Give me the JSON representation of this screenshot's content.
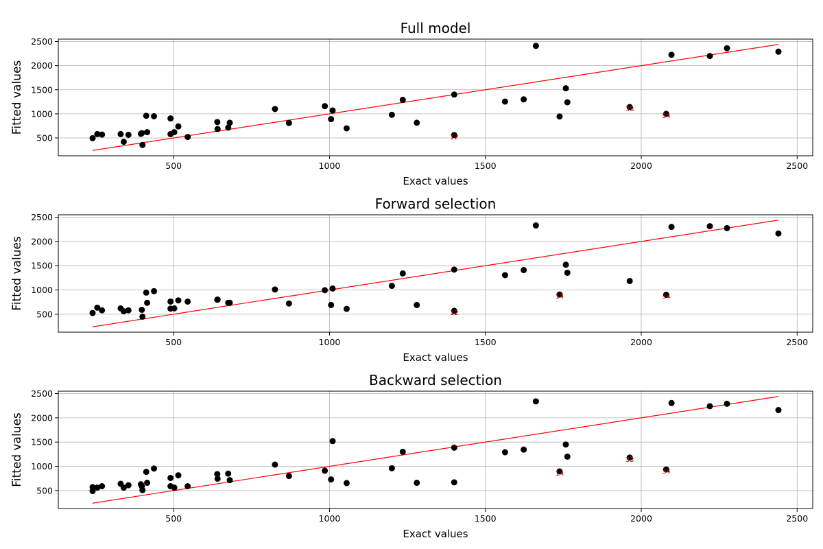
{
  "chart_data": [
    {
      "type": "scatter",
      "title": "Full model",
      "xlabel": "Exact values",
      "ylabel": "Fitted values",
      "xlim": [
        130,
        2550
      ],
      "ylim": [
        130,
        2550
      ],
      "xticks": [
        500,
        1000,
        1500,
        2000,
        2500
      ],
      "yticks": [
        500,
        1000,
        1500,
        2000,
        2500
      ],
      "grid": true,
      "reference_line": {
        "x": [
          240,
          2440
        ],
        "y": [
          240,
          2440
        ],
        "color": "#ff0000"
      },
      "point_color": "#000000",
      "points": [
        [
          240,
          495
        ],
        [
          255,
          580
        ],
        [
          270,
          570
        ],
        [
          330,
          580
        ],
        [
          340,
          420
        ],
        [
          355,
          565
        ],
        [
          395,
          585
        ],
        [
          398,
          600
        ],
        [
          400,
          355
        ],
        [
          412,
          960
        ],
        [
          415,
          620
        ],
        [
          437,
          950
        ],
        [
          490,
          580
        ],
        [
          490,
          905
        ],
        [
          502,
          620
        ],
        [
          515,
          740
        ],
        [
          545,
          520
        ],
        [
          640,
          830
        ],
        [
          641,
          685
        ],
        [
          675,
          715
        ],
        [
          680,
          815
        ],
        [
          825,
          1100
        ],
        [
          870,
          810
        ],
        [
          985,
          1160
        ],
        [
          1005,
          890
        ],
        [
          1010,
          1070
        ],
        [
          1055,
          700
        ],
        [
          1200,
          980
        ],
        [
          1235,
          1290
        ],
        [
          1280,
          815
        ],
        [
          1400,
          560
        ],
        [
          1400,
          1400
        ],
        [
          1563,
          1255
        ],
        [
          1623,
          1300
        ],
        [
          1662,
          2410
        ],
        [
          1738,
          945
        ],
        [
          1758,
          1530
        ],
        [
          1763,
          1240
        ],
        [
          1963,
          1140
        ],
        [
          2080,
          1000
        ],
        [
          2097,
          2225
        ],
        [
          2220,
          2200
        ],
        [
          2275,
          2360
        ],
        [
          2440,
          2290
        ]
      ],
      "annotations": [
        {
          "text": "12",
          "x": 1400,
          "y": 560
        },
        {
          "text": "33",
          "x": 1963,
          "y": 1140
        },
        {
          "text": "34",
          "x": 2080,
          "y": 1000
        }
      ]
    },
    {
      "type": "scatter",
      "title": "Forward selection",
      "xlabel": "Exact values",
      "ylabel": "Fitted values",
      "xlim": [
        130,
        2550
      ],
      "ylim": [
        130,
        2550
      ],
      "xticks": [
        500,
        1000,
        1500,
        2000,
        2500
      ],
      "yticks": [
        500,
        1000,
        1500,
        2000,
        2500
      ],
      "grid": true,
      "reference_line": {
        "x": [
          240,
          2440
        ],
        "y": [
          240,
          2440
        ],
        "color": "#ff0000"
      },
      "point_color": "#000000",
      "points": [
        [
          240,
          525
        ],
        [
          255,
          635
        ],
        [
          270,
          580
        ],
        [
          330,
          620
        ],
        [
          340,
          560
        ],
        [
          355,
          580
        ],
        [
          398,
          590
        ],
        [
          400,
          450
        ],
        [
          412,
          945
        ],
        [
          415,
          735
        ],
        [
          437,
          975
        ],
        [
          490,
          760
        ],
        [
          490,
          615
        ],
        [
          502,
          620
        ],
        [
          515,
          785
        ],
        [
          545,
          760
        ],
        [
          640,
          800
        ],
        [
          641,
          800
        ],
        [
          675,
          735
        ],
        [
          680,
          735
        ],
        [
          825,
          1010
        ],
        [
          870,
          720
        ],
        [
          985,
          995
        ],
        [
          1005,
          690
        ],
        [
          1010,
          1030
        ],
        [
          1055,
          610
        ],
        [
          1200,
          1085
        ],
        [
          1235,
          1340
        ],
        [
          1280,
          690
        ],
        [
          1400,
          570
        ],
        [
          1400,
          1420
        ],
        [
          1563,
          1305
        ],
        [
          1623,
          1410
        ],
        [
          1662,
          2330
        ],
        [
          1738,
          905
        ],
        [
          1758,
          1520
        ],
        [
          1763,
          1355
        ],
        [
          1963,
          1185
        ],
        [
          2080,
          900
        ],
        [
          2097,
          2300
        ],
        [
          2220,
          2315
        ],
        [
          2275,
          2275
        ],
        [
          2440,
          2165
        ]
      ],
      "annotations": [
        {
          "text": "12",
          "x": 1400,
          "y": 570
        },
        {
          "text": "14",
          "x": 1738,
          "y": 905
        },
        {
          "text": "34",
          "x": 2080,
          "y": 900
        }
      ]
    },
    {
      "type": "scatter",
      "title": "Backward selection",
      "xlabel": "Exact values",
      "ylabel": "Fitted values",
      "xlim": [
        130,
        2550
      ],
      "ylim": [
        130,
        2550
      ],
      "xticks": [
        500,
        1000,
        1500,
        2000,
        2500
      ],
      "yticks": [
        500,
        1000,
        1500,
        2000,
        2500
      ],
      "grid": true,
      "reference_line": {
        "x": [
          240,
          2440
        ],
        "y": [
          240,
          2440
        ],
        "color": "#ff0000"
      },
      "point_color": "#000000",
      "points": [
        [
          240,
          570
        ],
        [
          240,
          490
        ],
        [
          255,
          560
        ],
        [
          270,
          590
        ],
        [
          330,
          640
        ],
        [
          340,
          560
        ],
        [
          355,
          610
        ],
        [
          395,
          630
        ],
        [
          398,
          590
        ],
        [
          400,
          510
        ],
        [
          412,
          885
        ],
        [
          415,
          660
        ],
        [
          437,
          955
        ],
        [
          490,
          760
        ],
        [
          490,
          590
        ],
        [
          502,
          560
        ],
        [
          515,
          815
        ],
        [
          545,
          590
        ],
        [
          640,
          840
        ],
        [
          641,
          745
        ],
        [
          675,
          850
        ],
        [
          680,
          715
        ],
        [
          825,
          1035
        ],
        [
          870,
          800
        ],
        [
          985,
          910
        ],
        [
          1005,
          730
        ],
        [
          1010,
          1520
        ],
        [
          1055,
          655
        ],
        [
          1200,
          960
        ],
        [
          1235,
          1300
        ],
        [
          1280,
          660
        ],
        [
          1400,
          670
        ],
        [
          1400,
          1385
        ],
        [
          1563,
          1290
        ],
        [
          1623,
          1345
        ],
        [
          1662,
          2340
        ],
        [
          1738,
          895
        ],
        [
          1758,
          1450
        ],
        [
          1763,
          1200
        ],
        [
          1963,
          1180
        ],
        [
          2080,
          935
        ],
        [
          2097,
          2305
        ],
        [
          2220,
          2240
        ],
        [
          2275,
          2290
        ],
        [
          2440,
          2160
        ]
      ],
      "annotations": [
        {
          "text": "14",
          "x": 1738,
          "y": 895
        },
        {
          "text": "33",
          "x": 1963,
          "y": 1180
        },
        {
          "text": "34",
          "x": 2080,
          "y": 935
        }
      ]
    }
  ]
}
